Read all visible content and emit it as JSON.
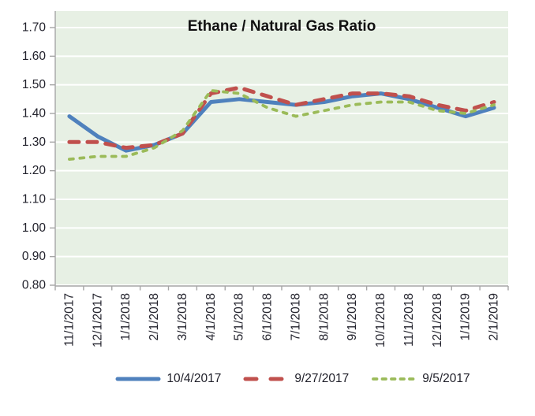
{
  "title": "Ethane / Natural Gas Ratio",
  "chart_data": {
    "type": "line",
    "title": "Ethane / Natural Gas Ratio",
    "categories": [
      "11/1/2017",
      "12/1/2017",
      "1/1/2018",
      "2/1/2018",
      "3/1/2018",
      "4/1/2018",
      "5/1/2018",
      "6/1/2018",
      "7/1/2018",
      "8/1/2018",
      "9/1/2018",
      "10/1/2018",
      "11/1/2018",
      "12/1/2018",
      "1/1/2019",
      "2/1/2019"
    ],
    "series": [
      {
        "name": "10/4/2017",
        "style": "solid",
        "color": "#4f81bd",
        "values": [
          1.39,
          1.32,
          1.27,
          1.29,
          1.33,
          1.44,
          1.45,
          1.44,
          1.43,
          1.44,
          1.46,
          1.47,
          1.45,
          1.42,
          1.39,
          1.42
        ]
      },
      {
        "name": "9/27/2017",
        "style": "dashed",
        "color": "#c0504d",
        "values": [
          1.3,
          1.3,
          1.28,
          1.29,
          1.33,
          1.47,
          1.49,
          1.46,
          1.43,
          1.45,
          1.47,
          1.47,
          1.46,
          1.43,
          1.41,
          1.44
        ]
      },
      {
        "name": "9/5/2017",
        "style": "dotted",
        "color": "#9bbb59",
        "values": [
          1.24,
          1.25,
          1.25,
          1.28,
          1.34,
          1.48,
          1.47,
          1.42,
          1.39,
          1.41,
          1.43,
          1.44,
          1.44,
          1.41,
          1.4,
          1.43
        ]
      }
    ],
    "y_ticks": [
      "1.70",
      "1.60",
      "1.50",
      "1.40",
      "1.30",
      "1.20",
      "1.10",
      "1.00",
      "0.90",
      "0.80"
    ],
    "ylim": [
      0.8,
      1.7
    ],
    "grid": true,
    "legend_position": "bottom",
    "colors": {
      "plot_background": "#e7f0e4",
      "gridline": "#ffffff",
      "axis": "#a6a6a6",
      "label_text": "#22222c",
      "title_text": "#111111"
    }
  }
}
